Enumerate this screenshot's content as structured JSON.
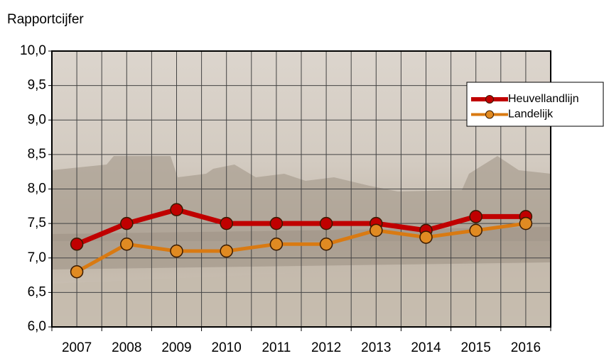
{
  "chart_data": {
    "type": "line",
    "y_label": "Rapportcijfer",
    "categories": [
      "2007",
      "2008",
      "2009",
      "2010",
      "2011",
      "2012",
      "2013",
      "2014",
      "2015",
      "2016"
    ],
    "series": [
      {
        "name": "Heuvellandlijn",
        "color": "#c00000",
        "marker_color": "#c00000",
        "values": [
          7.2,
          7.5,
          7.7,
          7.5,
          7.5,
          7.5,
          7.5,
          7.4,
          7.6,
          7.6
        ]
      },
      {
        "name": "Landelijk",
        "color": "#d97a12",
        "marker_color": "#e08a22",
        "values": [
          6.8,
          7.2,
          7.1,
          7.1,
          7.2,
          7.2,
          7.4,
          7.3,
          7.4,
          7.5
        ]
      }
    ],
    "ylim": [
      6.0,
      10.0
    ],
    "yticks": [
      {
        "value": 6.0,
        "label": "6,0"
      },
      {
        "value": 6.5,
        "label": "6,5"
      },
      {
        "value": 7.0,
        "label": "7,0"
      },
      {
        "value": 7.5,
        "label": "7,5"
      },
      {
        "value": 8.0,
        "label": "8,0"
      },
      {
        "value": 8.5,
        "label": "8,5"
      },
      {
        "value": 9.0,
        "label": "9,0"
      },
      {
        "value": 9.5,
        "label": "9,5"
      },
      {
        "value": 10.0,
        "label": "10,0"
      }
    ],
    "grid": true,
    "legend": "right"
  }
}
